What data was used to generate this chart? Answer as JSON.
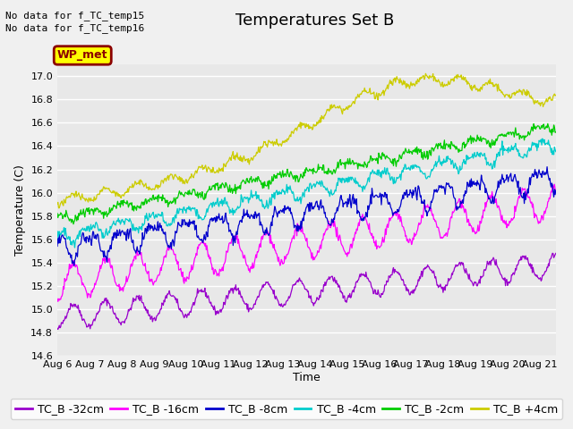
{
  "title": "Temperatures Set B",
  "ylabel": "Temperature (C)",
  "xlabel": "Time",
  "no_data_text": [
    "No data for f_TC_temp15",
    "No data for f_TC_temp16"
  ],
  "wp_met_label": "WP_met",
  "wp_met_bg": "#ffff00",
  "wp_met_border": "#8B0000",
  "wp_met_text_color": "#8B0000",
  "ylim": [
    14.6,
    17.1
  ],
  "xlim_days": [
    0,
    15.5
  ],
  "x_tick_labels": [
    "Aug 6",
    "Aug 7",
    "Aug 8",
    "Aug 9",
    "Aug 10",
    "Aug 11",
    "Aug 12",
    "Aug 13",
    "Aug 14",
    "Aug 15",
    "Aug 16",
    "Aug 17",
    "Aug 18",
    "Aug 19",
    "Aug 20",
    "Aug 21"
  ],
  "series_colors": [
    "#9900cc",
    "#ff00ff",
    "#0000cc",
    "#00cccc",
    "#00cc00",
    "#cccc00"
  ],
  "series_labels": [
    "TC_B -32cm",
    "TC_B -16cm",
    "TC_B -8cm",
    "TC_B -4cm",
    "TC_B -2cm",
    "TC_B +4cm"
  ],
  "background_color": "#e8e8e8",
  "grid_color": "#ffffff",
  "title_fontsize": 13,
  "label_fontsize": 9,
  "tick_fontsize": 8,
  "legend_fontsize": 9
}
